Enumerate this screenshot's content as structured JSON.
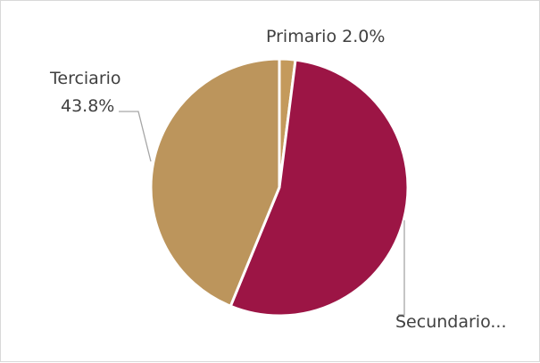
{
  "chart_data": {
    "type": "pie",
    "categories": [
      "Primario",
      "Secundario",
      "Terciario"
    ],
    "values": [
      2.0,
      54.2,
      43.8
    ],
    "colors": [
      "#C49A5C",
      "#9C1545",
      "#BC955C"
    ],
    "labels": [
      {
        "name": "Primario",
        "value": "2.0%"
      },
      {
        "name": "Secundario...",
        "value": ""
      },
      {
        "name": "Terciario",
        "value": "43.8%"
      }
    ],
    "title": "",
    "legend": "none"
  }
}
